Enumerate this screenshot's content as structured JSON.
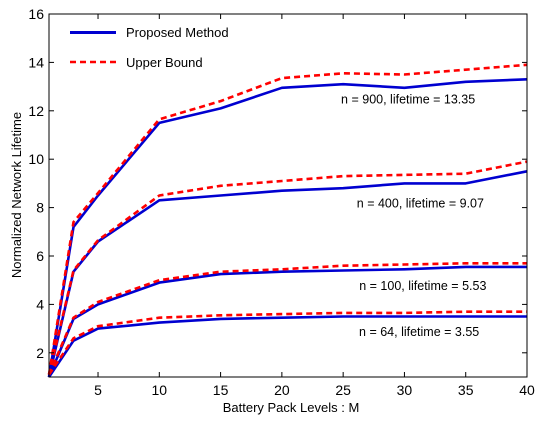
{
  "chart_data": {
    "type": "line",
    "title": "",
    "xlabel": "Battery Pack Levels :  M",
    "ylabel": "Normalized Network Lifetime",
    "xlim": [
      1,
      40
    ],
    "ylim": [
      1,
      16
    ],
    "xticks": [
      5,
      10,
      15,
      20,
      25,
      30,
      35,
      40
    ],
    "yticks": [
      2,
      4,
      6,
      8,
      10,
      12,
      14,
      16
    ],
    "grid": false,
    "legend": {
      "placement": "top-left",
      "entries": [
        {
          "label": "Proposed Method",
          "color": "#0000d0",
          "style": "solid"
        },
        {
          "label": "Upper Bound",
          "color": "#ff0000",
          "style": "dashed"
        }
      ]
    },
    "x": [
      1,
      3,
      5,
      10,
      15,
      20,
      25,
      30,
      35,
      40
    ],
    "groups": [
      {
        "annotation": "n = 900,  lifetime = 13.35",
        "proposed": [
          1.0,
          7.2,
          8.5,
          11.5,
          12.1,
          12.95,
          13.1,
          12.95,
          13.2,
          13.3
        ],
        "upper_bound": [
          1.1,
          7.4,
          8.6,
          11.65,
          12.4,
          13.35,
          13.55,
          13.5,
          13.7,
          13.9
        ]
      },
      {
        "annotation": "n = 400,  lifetime = 9.07",
        "proposed": [
          1.0,
          5.35,
          6.6,
          8.3,
          8.5,
          8.7,
          8.8,
          9.0,
          9.0,
          9.5
        ],
        "upper_bound": [
          1.1,
          5.4,
          6.65,
          8.5,
          8.9,
          9.1,
          9.3,
          9.35,
          9.4,
          9.9
        ]
      },
      {
        "annotation": "n = 100,  lifetime = 5.53",
        "proposed": [
          1.0,
          3.4,
          4.0,
          4.9,
          5.25,
          5.35,
          5.4,
          5.45,
          5.55,
          5.55
        ],
        "upper_bound": [
          1.1,
          3.45,
          4.1,
          5.0,
          5.35,
          5.45,
          5.6,
          5.65,
          5.7,
          5.7
        ]
      },
      {
        "annotation": "n = 64,  lifetime = 3.55",
        "proposed": [
          1.0,
          2.5,
          3.0,
          3.25,
          3.4,
          3.45,
          3.5,
          3.5,
          3.5,
          3.5
        ],
        "upper_bound": [
          1.1,
          2.6,
          3.1,
          3.45,
          3.55,
          3.6,
          3.65,
          3.65,
          3.7,
          3.7
        ]
      }
    ],
    "colors": {
      "proposed": "#0000d0",
      "upper_bound": "#ff0000",
      "axes": "#000000"
    }
  }
}
